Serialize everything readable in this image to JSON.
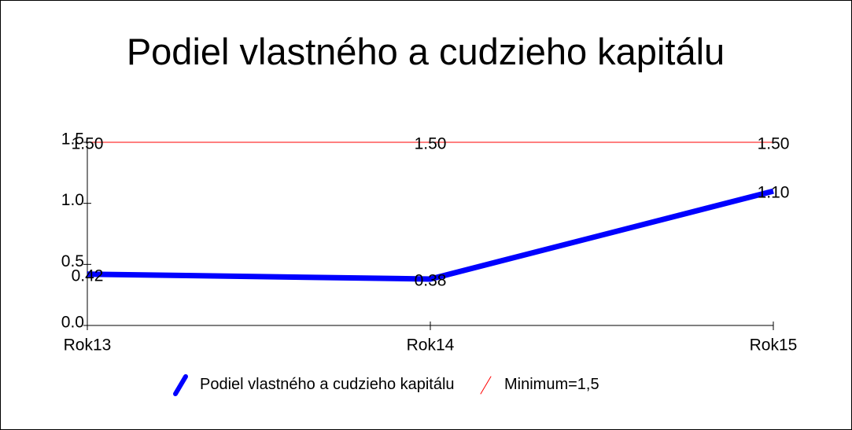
{
  "chart_data": {
    "type": "line",
    "title": "Podiel vlastného a cudzieho kapitálu",
    "categories": [
      "Rok13",
      "Rok14",
      "Rok15"
    ],
    "series": [
      {
        "name": "Podiel vlastného a cudzieho kapitálu",
        "color": "#0000ff",
        "values": [
          0.42,
          0.38,
          1.1
        ],
        "value_labels": [
          "0.42",
          "0.38",
          "1.10"
        ]
      },
      {
        "name": "Minimum=1,5",
        "color": "#ff0000",
        "values": [
          1.5,
          1.5,
          1.5
        ],
        "value_labels": [
          "1.50",
          "1.50",
          "1.50"
        ]
      }
    ],
    "ylim": [
      0,
      1.5
    ],
    "yticks": [
      {
        "value": 0,
        "label": "0.0"
      },
      0.5,
      {
        "value": 1,
        "label": "1.0"
      },
      1.5
    ],
    "grid": false,
    "legend": "bottom"
  }
}
